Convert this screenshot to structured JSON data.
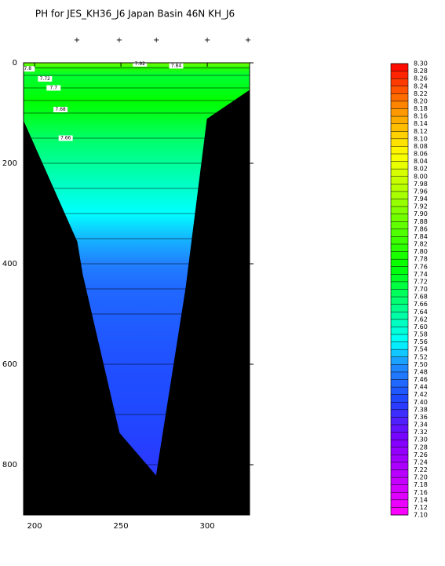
{
  "chart_data": {
    "type": "section",
    "title": "PH for JES_KH36_J6 Japan Basin 46N KH_J6",
    "xlim": [
      193.6,
      324.5
    ],
    "xticks": [
      200,
      250,
      300
    ],
    "ylim": [
      0,
      900
    ],
    "y_inverted": true,
    "yticks": [
      0,
      200,
      400,
      600,
      800
    ],
    "stations_x": [
      224.5,
      249,
      270.5,
      300,
      323.6
    ],
    "bottom": {
      "x": [
        193.6,
        224.5,
        227.7,
        249,
        270.5,
        287.7,
        300,
        324.5
      ],
      "depth": [
        117,
        356,
        422,
        737,
        823,
        448,
        112,
        55
      ]
    },
    "profile_depth": [
      0,
      10,
      25,
      50,
      75,
      100,
      150,
      200,
      250,
      300,
      350,
      400,
      450,
      500,
      600,
      700,
      800
    ],
    "profile_ph": [
      7.9,
      7.8,
      7.72,
      7.74,
      7.76,
      7.74,
      7.68,
      7.64,
      7.6,
      7.56,
      7.52,
      7.48,
      7.45,
      7.44,
      7.42,
      7.41,
      7.39
    ],
    "contour_labels": [
      {
        "x": 261,
        "depth": 2,
        "label": "7.92"
      },
      {
        "x": 282,
        "depth": 6,
        "label": "7.84"
      },
      {
        "x": 196,
        "depth": 12,
        "label": "7.8"
      },
      {
        "x": 206,
        "depth": 32,
        "label": "7.72"
      },
      {
        "x": 211,
        "depth": 50,
        "label": "7.7"
      },
      {
        "x": 215,
        "depth": 93,
        "label": "7.68"
      },
      {
        "x": 218,
        "depth": 150,
        "label": "7.66"
      }
    ],
    "colormap": [
      {
        "value": 7.1,
        "color": "#ff00ff"
      },
      {
        "value": 7.3,
        "color": "#8000ff"
      },
      {
        "value": 7.4,
        "color": "#2040ff"
      },
      {
        "value": 7.5,
        "color": "#2090ff"
      },
      {
        "value": 7.56,
        "color": "#00ffff"
      },
      {
        "value": 7.66,
        "color": "#00ff80"
      },
      {
        "value": 7.76,
        "color": "#00ff00"
      },
      {
        "value": 7.96,
        "color": "#b0ff00"
      },
      {
        "value": 8.06,
        "color": "#ffff00"
      },
      {
        "value": 8.18,
        "color": "#ff9000"
      },
      {
        "value": 8.3,
        "color": "#ff0000"
      }
    ],
    "colorbar_ticks": [
      {
        "value": 8.3,
        "label": "8.30"
      },
      8.28,
      8.26,
      8.24,
      8.22,
      {
        "value": 8.2,
        "label": "8.20"
      },
      8.18,
      8.16,
      8.14,
      8.12,
      {
        "value": 8.1,
        "label": "8.10"
      },
      8.08,
      8.06,
      8.04,
      8.02,
      {
        "value": 8,
        "label": "8.00"
      },
      7.98,
      7.96,
      7.94,
      7.92,
      {
        "value": 7.9,
        "label": "7.90"
      },
      7.88,
      7.86,
      7.84,
      7.82,
      {
        "value": 7.8,
        "label": "7.80"
      },
      7.78,
      7.76,
      7.74,
      7.72,
      {
        "value": 7.7,
        "label": "7.70"
      },
      7.68,
      7.66,
      7.64,
      7.62,
      {
        "value": 7.6,
        "label": "7.60"
      },
      7.58,
      7.56,
      7.54,
      7.52,
      {
        "value": 7.5,
        "label": "7.50"
      },
      7.48,
      7.46,
      7.44,
      7.42,
      {
        "value": 7.4,
        "label": "7.40"
      },
      7.38,
      7.36,
      7.34,
      7.32,
      {
        "value": 7.3,
        "label": "7.30"
      },
      7.28,
      7.26,
      7.24,
      7.22,
      {
        "value": 7.2,
        "label": "7.20"
      },
      7.18,
      7.16,
      7.14,
      7.12,
      {
        "value": 7.1,
        "label": "7.10"
      }
    ]
  }
}
